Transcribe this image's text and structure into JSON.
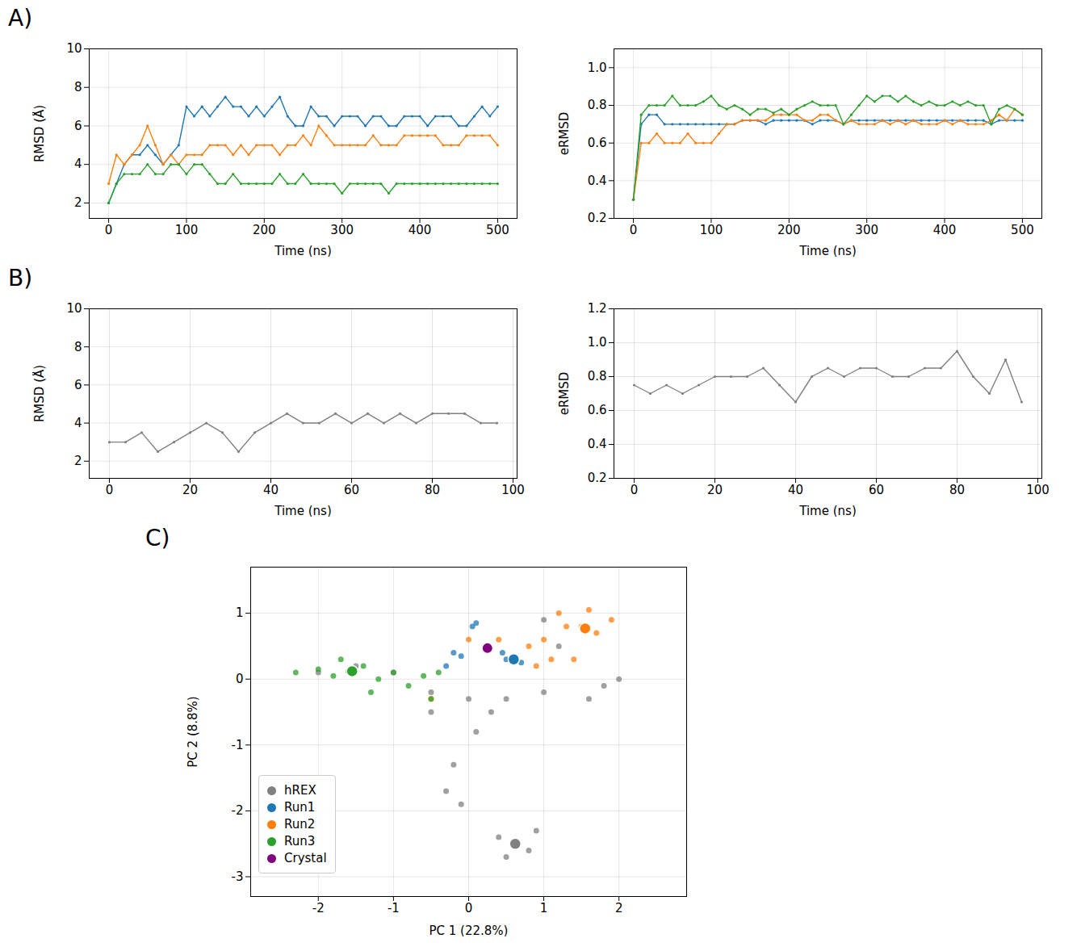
{
  "panel_labels": [
    "A)",
    "B)",
    "C)"
  ],
  "chart_data": [
    {
      "type": "line",
      "xlabel": "Time (ns)",
      "ylabel": "RMSD (Å)",
      "grid": true,
      "xlim": [
        -25,
        525
      ],
      "xticks": [
        0,
        100,
        200,
        300,
        400,
        500
      ],
      "ylim": [
        1.2,
        10
      ],
      "yticks": [
        2,
        4,
        6,
        8,
        10
      ],
      "x": [
        0,
        10,
        20,
        30,
        40,
        50,
        60,
        70,
        80,
        90,
        100,
        110,
        120,
        130,
        140,
        150,
        160,
        170,
        180,
        190,
        200,
        210,
        220,
        230,
        240,
        250,
        260,
        270,
        280,
        290,
        300,
        310,
        320,
        330,
        340,
        350,
        360,
        370,
        380,
        390,
        400,
        410,
        420,
        430,
        440,
        450,
        460,
        470,
        480,
        490,
        500
      ],
      "series": [
        {
          "color": "#1f77b4",
          "values": [
            2,
            3,
            4,
            4.5,
            4.5,
            5,
            4.5,
            4,
            4.5,
            5,
            7,
            6.5,
            7,
            6.5,
            7,
            7.5,
            7,
            7,
            6.5,
            7,
            6.5,
            7,
            7.5,
            6.5,
            6,
            6,
            7,
            6.5,
            6.5,
            6,
            6.5,
            6.5,
            6.5,
            6,
            6.5,
            6.5,
            6,
            6,
            6.5,
            6.5,
            6.5,
            6,
            6.5,
            6.5,
            6.5,
            6,
            6,
            6.5,
            7,
            6.5,
            7
          ]
        },
        {
          "color": "#ff7f0e",
          "values": [
            3,
            4.5,
            4,
            4.5,
            5,
            6,
            5,
            4,
            4.5,
            4,
            4.5,
            4.5,
            4.5,
            5,
            5,
            5,
            4.5,
            5,
            4.5,
            5,
            5,
            5,
            4.5,
            5,
            5,
            5.5,
            5,
            6,
            5.5,
            5,
            5,
            5,
            5,
            5,
            5.5,
            5,
            5,
            5,
            5.5,
            5.5,
            5.5,
            5.5,
            5.5,
            5,
            5,
            5,
            5.5,
            5.5,
            5.5,
            5.5,
            5
          ]
        },
        {
          "color": "#2ca02c",
          "values": [
            2,
            3,
            3.5,
            3.5,
            3.5,
            4,
            3.5,
            3.5,
            4,
            4,
            3.5,
            4,
            4,
            3.5,
            3,
            3,
            3.5,
            3,
            3,
            3,
            3,
            3,
            3.5,
            3,
            3,
            3.5,
            3,
            3,
            3,
            3,
            2.5,
            3,
            3,
            3,
            3,
            3,
            2.5,
            3,
            3,
            3,
            3,
            3,
            3,
            3,
            3,
            3,
            3,
            3,
            3,
            3,
            3
          ]
        }
      ]
    },
    {
      "type": "line",
      "xlabel": "Time (ns)",
      "ylabel": "eRMSD",
      "grid": true,
      "xlim": [
        -25,
        525
      ],
      "xticks": [
        0,
        100,
        200,
        300,
        400,
        500
      ],
      "ylim": [
        0.2,
        1.1
      ],
      "yticks": [
        0.2,
        0.4,
        0.6,
        0.8,
        {
          "value": 1,
          "label": "1.0"
        }
      ],
      "x": [
        0,
        10,
        20,
        30,
        40,
        50,
        60,
        70,
        80,
        90,
        100,
        110,
        120,
        130,
        140,
        150,
        160,
        170,
        180,
        190,
        200,
        210,
        220,
        230,
        240,
        250,
        260,
        270,
        280,
        290,
        300,
        310,
        320,
        330,
        340,
        350,
        360,
        370,
        380,
        390,
        400,
        410,
        420,
        430,
        440,
        450,
        460,
        470,
        480,
        490,
        500
      ],
      "series": [
        {
          "color": "#1f77b4",
          "values": [
            0.3,
            0.7,
            0.75,
            0.75,
            0.7,
            0.7,
            0.7,
            0.7,
            0.7,
            0.7,
            0.7,
            0.7,
            0.7,
            0.7,
            0.72,
            0.72,
            0.72,
            0.7,
            0.72,
            0.72,
            0.72,
            0.72,
            0.72,
            0.7,
            0.72,
            0.72,
            0.72,
            0.7,
            0.72,
            0.72,
            0.72,
            0.72,
            0.72,
            0.72,
            0.72,
            0.72,
            0.72,
            0.72,
            0.72,
            0.72,
            0.72,
            0.72,
            0.72,
            0.72,
            0.72,
            0.72,
            0.7,
            0.72,
            0.72,
            0.72,
            0.72
          ]
        },
        {
          "color": "#ff7f0e",
          "values": [
            0.3,
            0.6,
            0.6,
            0.65,
            0.6,
            0.6,
            0.6,
            0.65,
            0.6,
            0.6,
            0.6,
            0.65,
            0.7,
            0.7,
            0.72,
            0.72,
            0.72,
            0.72,
            0.75,
            0.75,
            0.75,
            0.75,
            0.72,
            0.72,
            0.75,
            0.75,
            0.72,
            0.7,
            0.72,
            0.7,
            0.7,
            0.7,
            0.72,
            0.7,
            0.72,
            0.7,
            0.72,
            0.7,
            0.7,
            0.7,
            0.72,
            0.7,
            0.72,
            0.7,
            0.7,
            0.7,
            0.72,
            0.75,
            0.72,
            0.78,
            0.75
          ]
        },
        {
          "color": "#2ca02c",
          "values": [
            0.3,
            0.75,
            0.8,
            0.8,
            0.8,
            0.85,
            0.8,
            0.8,
            0.8,
            0.82,
            0.85,
            0.8,
            0.78,
            0.8,
            0.78,
            0.75,
            0.78,
            0.78,
            0.76,
            0.78,
            0.75,
            0.78,
            0.8,
            0.82,
            0.8,
            0.8,
            0.8,
            0.7,
            0.75,
            0.8,
            0.85,
            0.82,
            0.85,
            0.85,
            0.82,
            0.85,
            0.82,
            0.8,
            0.82,
            0.8,
            0.8,
            0.82,
            0.8,
            0.82,
            0.8,
            0.8,
            0.7,
            0.78,
            0.8,
            0.78,
            0.75
          ]
        }
      ]
    },
    {
      "type": "line",
      "xlabel": "Time (ns)",
      "ylabel": "RMSD (Å)",
      "grid": true,
      "xlim": [
        -5,
        101
      ],
      "xticks": [
        0,
        20,
        40,
        60,
        80,
        100
      ],
      "ylim": [
        1.1,
        10
      ],
      "yticks": [
        2,
        4,
        6,
        8,
        10
      ],
      "x": [
        0,
        4,
        8,
        12,
        16,
        20,
        24,
        28,
        32,
        36,
        40,
        44,
        48,
        52,
        56,
        60,
        64,
        68,
        72,
        76,
        80,
        84,
        88,
        92,
        96
      ],
      "series": [
        {
          "color": "#808080",
          "values": [
            3,
            3,
            3.5,
            2.5,
            3,
            3.5,
            4,
            3.5,
            2.5,
            3.5,
            4,
            4.5,
            4,
            4,
            4.5,
            4,
            4.5,
            4,
            4.5,
            4,
            4.5,
            4.5,
            4.5,
            4,
            4
          ]
        }
      ]
    },
    {
      "type": "line",
      "xlabel": "Time (ns)",
      "ylabel": "eRMSD",
      "grid": true,
      "xlim": [
        -5,
        101
      ],
      "xticks": [
        0,
        20,
        40,
        60,
        80,
        100
      ],
      "ylim": [
        0.2,
        1.2
      ],
      "yticks": [
        0.2,
        0.4,
        0.6,
        0.8,
        {
          "value": 1,
          "label": "1.0"
        },
        1.2
      ],
      "x": [
        0,
        4,
        8,
        12,
        16,
        20,
        24,
        28,
        32,
        36,
        40,
        44,
        48,
        52,
        56,
        60,
        64,
        68,
        72,
        76,
        80,
        84,
        88,
        92,
        96
      ],
      "series": [
        {
          "color": "#808080",
          "values": [
            0.75,
            0.7,
            0.75,
            0.7,
            0.75,
            0.8,
            0.8,
            0.8,
            0.85,
            0.75,
            0.65,
            0.8,
            0.85,
            0.8,
            0.85,
            0.85,
            0.8,
            0.8,
            0.85,
            0.85,
            0.95,
            0.8,
            0.7,
            0.9,
            0.65
          ]
        }
      ]
    },
    {
      "type": "scatter",
      "xlabel": "PC 1 (22.8%)",
      "ylabel": "PC 2 (8.8%)",
      "grid": true,
      "legend": "lower left",
      "xlim": [
        -2.9,
        2.9
      ],
      "xticks": [
        -2,
        -1,
        0,
        1,
        2
      ],
      "ylim": [
        -3.3,
        1.7
      ],
      "yticks": [
        -3,
        -2,
        -1,
        0,
        1
      ],
      "series": [
        {
          "name": "hREX",
          "color": "#808080",
          "x": [
            -2,
            -1.5,
            -1,
            -0.5,
            0,
            0.5,
            1,
            1.2,
            1.8,
            1.6,
            2,
            0.1,
            -0.2,
            -0.3,
            -0.1,
            0.4,
            0.6,
            0.8,
            0.5,
            0.9,
            -0.5,
            0.3,
            1
          ],
          "y": [
            0.1,
            0.2,
            0.1,
            -0.2,
            -0.3,
            -0.3,
            0.9,
            0.5,
            -0.1,
            -0.3,
            0,
            -0.8,
            -1.3,
            -1.7,
            -1.9,
            -2.4,
            -2.5,
            -2.6,
            -2.7,
            -2.3,
            -0.5,
            -0.5,
            -0.2
          ],
          "center": [
            0.62,
            -2.5
          ]
        },
        {
          "name": "Run1",
          "color": "#1f77b4",
          "x": [
            0.05,
            0.1,
            -0.2,
            -0.1,
            0.5,
            0.6,
            0.7,
            0.45,
            -0.3
          ],
          "y": [
            0.8,
            0.85,
            0.4,
            0.35,
            0.3,
            0.3,
            0.25,
            0.4,
            0.2
          ],
          "center": [
            0.6,
            0.3
          ]
        },
        {
          "name": "Run2",
          "color": "#ff7f0e",
          "x": [
            0,
            0.4,
            0.8,
            1,
            1.3,
            1.5,
            1.7,
            1.9,
            1.2,
            1.6,
            0.9,
            1.1,
            1.4,
            -0.5
          ],
          "y": [
            0.6,
            0.6,
            0.5,
            0.6,
            0.8,
            0.8,
            0.7,
            0.9,
            1,
            1.05,
            0.2,
            0.3,
            0.3,
            -0.3
          ],
          "center": [
            1.55,
            0.77
          ]
        },
        {
          "name": "Run3",
          "color": "#2ca02c",
          "x": [
            -2.3,
            -2,
            -1.8,
            -1.6,
            -1.4,
            -1.2,
            -1,
            -0.8,
            -0.6,
            -0.4,
            -1.7,
            -1.3,
            -0.5
          ],
          "y": [
            0.1,
            0.15,
            0.05,
            0.12,
            0.2,
            0,
            0.1,
            -0.1,
            0.05,
            0.1,
            0.3,
            -0.2,
            -0.3
          ],
          "center": [
            -1.55,
            0.12
          ]
        },
        {
          "name": "Crystal",
          "color": "#800080",
          "x": [
            0.25
          ],
          "y": [
            0.47
          ]
        }
      ]
    }
  ]
}
